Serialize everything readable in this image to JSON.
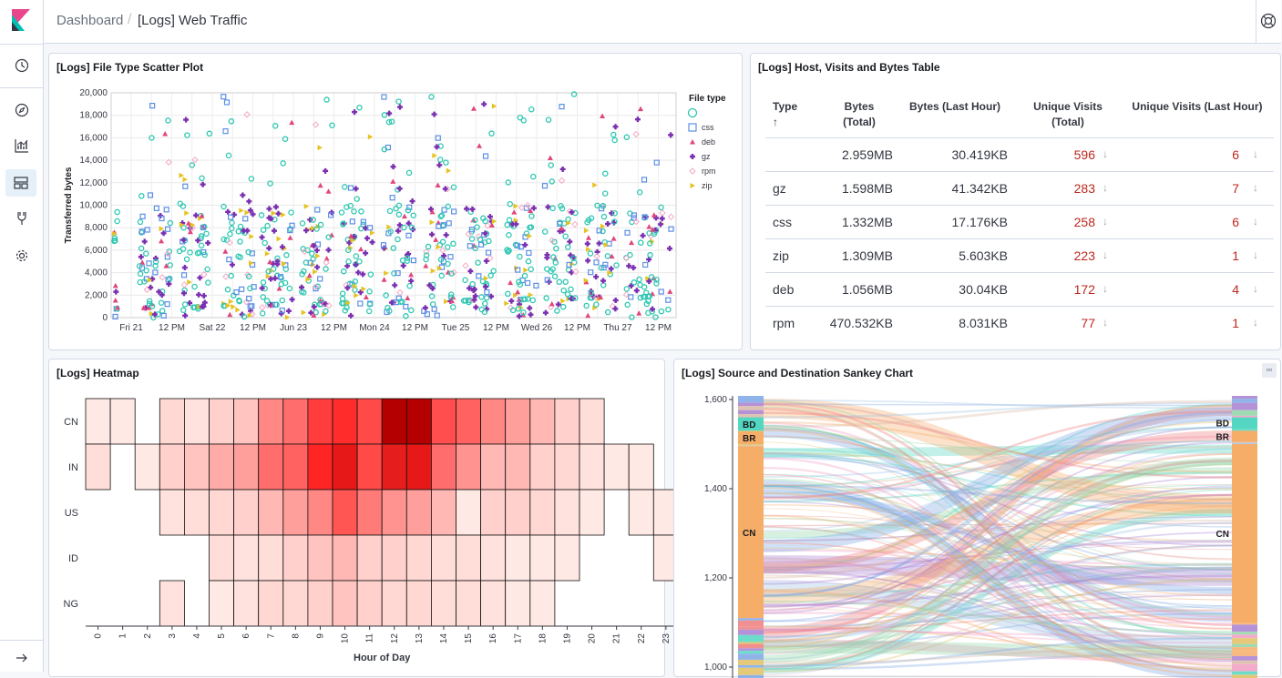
{
  "breadcrumb": {
    "parent": "Dashboard",
    "current": "[Logs] Web Traffic"
  },
  "sidebar": {
    "items": [
      "clock-icon",
      "compass-icon",
      "visualize-icon",
      "dashboard-icon",
      "devtools-icon",
      "gear-icon"
    ],
    "collapse": "arrow-right-icon"
  },
  "panels": {
    "scatter": {
      "title": "[Logs] File Type Scatter Plot"
    },
    "table": {
      "title": "[Logs] Host, Visits and Bytes Table"
    },
    "heatmap": {
      "title": "[Logs] Heatmap"
    },
    "sankey": {
      "title": "[Logs] Source and Destination Sankey Chart"
    }
  },
  "table": {
    "headers": [
      {
        "l1": "Type",
        "l2": "↑"
      },
      {
        "l1": "Bytes",
        "l2": "(Total)"
      },
      {
        "l1": "Bytes (Last Hour)",
        "l2": ""
      },
      {
        "l1": "Unique Visits",
        "l2": "(Total)"
      },
      {
        "l1": "Unique Visits (Last Hour)",
        "l2": ""
      }
    ],
    "rows": [
      {
        "type": "",
        "bytes_total": "2.959MB",
        "bytes_hour": "30.419KB",
        "visits_total": "596",
        "visits_hour": "6"
      },
      {
        "type": "gz",
        "bytes_total": "1.598MB",
        "bytes_hour": "41.342KB",
        "visits_total": "283",
        "visits_hour": "7"
      },
      {
        "type": "css",
        "bytes_total": "1.332MB",
        "bytes_hour": "17.176KB",
        "visits_total": "258",
        "visits_hour": "6"
      },
      {
        "type": "zip",
        "bytes_total": "1.309MB",
        "bytes_hour": "5.603KB",
        "visits_total": "223",
        "visits_hour": "1"
      },
      {
        "type": "deb",
        "bytes_total": "1.056MB",
        "bytes_hour": "30.04KB",
        "visits_total": "172",
        "visits_hour": "4"
      },
      {
        "type": "rpm",
        "bytes_total": "470.532KB",
        "bytes_hour": "8.031KB",
        "visits_total": "77",
        "visits_hour": "1"
      }
    ],
    "down_arrow": "↓"
  },
  "chart_data": [
    {
      "type": "scatter",
      "title": "[Logs] File Type Scatter Plot",
      "ylabel": "Transferred bytes",
      "xlabel": "",
      "ylim": [
        0,
        20000
      ],
      "y_ticks": [
        "0",
        "2,000",
        "4,000",
        "6,000",
        "8,000",
        "10,000",
        "12,000",
        "14,000",
        "16,000",
        "18,000",
        "20,000"
      ],
      "x_ticks": [
        "Fri 21",
        "12 PM",
        "Sat 22",
        "12 PM",
        "Jun 23",
        "12 PM",
        "Mon 24",
        "12 PM",
        "Tue 25",
        "12 PM",
        "Wed 26",
        "12 PM",
        "Thu 27",
        "12 PM"
      ],
      "legend_title": "File type",
      "legend_position": "right",
      "grid": true,
      "series": [
        {
          "name": "",
          "color": "#2ec7b1",
          "shape": "circle"
        },
        {
          "name": "css",
          "color": "#5c8fe6",
          "shape": "square"
        },
        {
          "name": "deb",
          "color": "#e0467c",
          "shape": "triangle"
        },
        {
          "name": "gz",
          "color": "#7a2fb0",
          "shape": "cross"
        },
        {
          "name": "rpm",
          "color": "#f4a9c6",
          "shape": "diamond"
        },
        {
          "name": "zip",
          "color": "#e6c220",
          "shape": "triangle-right"
        }
      ]
    },
    {
      "type": "heatmap",
      "title": "[Logs] Heatmap",
      "xlabel": "Hour of Day",
      "categories_x": [
        "0",
        "1",
        "2",
        "3",
        "4",
        "5",
        "6",
        "7",
        "8",
        "9",
        "10",
        "11",
        "12",
        "13",
        "14",
        "15",
        "16",
        "17",
        "18",
        "19",
        "20",
        "21",
        "22",
        "23"
      ],
      "categories_y": [
        "CN",
        "IN",
        "US",
        "ID",
        "NG"
      ],
      "values": [
        [
          0.05,
          0.05,
          0,
          0.12,
          0.08,
          0.15,
          0.2,
          0.45,
          0.55,
          0.75,
          0.82,
          0.7,
          0.95,
          0.92,
          0.68,
          0.6,
          0.45,
          0.35,
          0.25,
          0.15,
          0.1,
          0,
          0,
          0
        ],
        [
          0.1,
          0,
          0.05,
          0.15,
          0.2,
          0.3,
          0.35,
          0.55,
          0.6,
          0.85,
          0.9,
          0.7,
          0.88,
          0.9,
          0.55,
          0.4,
          0.25,
          0.25,
          0.15,
          0.12,
          0.08,
          0.05,
          0.05,
          0
        ],
        [
          0,
          0,
          0,
          0.08,
          0.1,
          0.12,
          0.15,
          0.25,
          0.35,
          0.45,
          0.65,
          0.5,
          0.4,
          0.35,
          0.25,
          0.05,
          0.15,
          0.15,
          0.12,
          0.08,
          0.05,
          0,
          0.05,
          0.05
        ],
        [
          0,
          0,
          0,
          0,
          0,
          0.1,
          0.08,
          0.1,
          0.15,
          0.2,
          0.25,
          0.15,
          0.15,
          0.12,
          0.1,
          0.1,
          0.08,
          0.05,
          0.05,
          0.05,
          0,
          0,
          0,
          0.05
        ],
        [
          0,
          0,
          0,
          0.08,
          0,
          0.05,
          0.08,
          0.12,
          0.12,
          0.15,
          0.2,
          0.15,
          0.12,
          0.12,
          0.1,
          0.1,
          0.08,
          0.05,
          0.05,
          0,
          0,
          0,
          0,
          0
        ]
      ]
    },
    {
      "type": "sankey",
      "title": "[Logs] Source and Destination Sankey Chart",
      "y_ticks": [
        "1,000",
        "1,200",
        "1,400",
        "1,600"
      ],
      "ylim": [
        1000,
        1600
      ],
      "left_nodes": [
        {
          "name": "BD",
          "from": 1530,
          "to": 1560,
          "color": "#54d7c2"
        },
        {
          "name": "BR",
          "from": 1500,
          "to": 1528,
          "color": "#f6ad68"
        },
        {
          "name": "CN",
          "from": 1110,
          "to": 1495,
          "color": "#f6ad68"
        }
      ],
      "right_nodes": [
        {
          "name": "BD",
          "from": 1535,
          "to": 1560,
          "color": "#54d7c2"
        },
        {
          "name": "BR",
          "from": 1505,
          "to": 1530,
          "color": "#f6ad68"
        },
        {
          "name": "CN",
          "from": 1100,
          "to": 1500,
          "color": "#f6ad68"
        }
      ]
    }
  ]
}
